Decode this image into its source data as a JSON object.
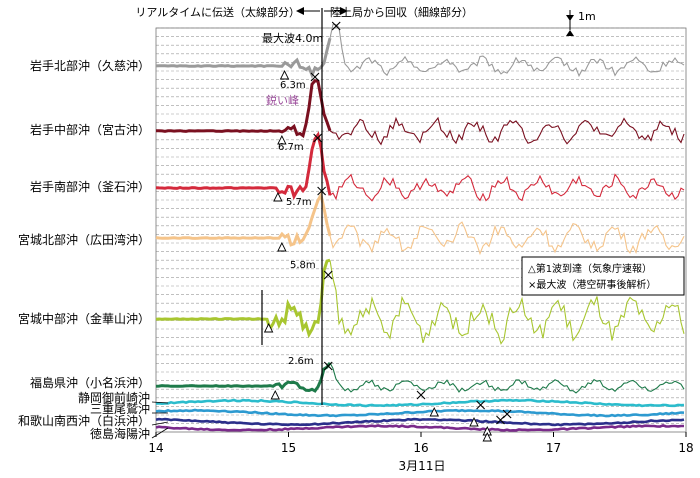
{
  "chart_data": {
    "type": "line",
    "xlabel": "3月11日",
    "xlim": [
      14,
      18
    ],
    "x_ticks": [
      "14",
      "15",
      "16",
      "17",
      "18"
    ],
    "scale_bar_label": "1m",
    "top_annotations": {
      "realtime": "リアルタイムに伝送（太線部分）",
      "recovered": "陸上局から回収（細線部分）"
    },
    "peak_labels": {
      "max_wave": "最大波4.0m",
      "sharp_peak": "鋭い峰",
      "iwate_central": "6.3m",
      "iwate_south": "6.7m",
      "miyagi_north": "5.7m",
      "miyagi_central": "5.8m",
      "fukushima": "2.6m"
    },
    "legend": {
      "first_wave": "△第1波到達（気象庁速報）",
      "max_wave": "×最大波（港空研事後解析）"
    },
    "series": [
      {
        "name": "岩手北部沖（久慈沖）",
        "color": "#9a9a9a",
        "arrival_x": 14.97,
        "peak_x": 15.36,
        "peak_m": 4.0
      },
      {
        "name": "岩手中部沖（宮古沖）",
        "color": "#7a1020",
        "arrival_x": 14.95,
        "peak_x": 15.2,
        "peak_m": 6.3
      },
      {
        "name": "岩手南部沖（釜石沖）",
        "color": "#d42a3c",
        "arrival_x": 14.92,
        "peak_x": 15.22,
        "peak_m": 6.7
      },
      {
        "name": "宮城北部沖（広田湾沖）",
        "color": "#f5c48a",
        "arrival_x": 14.95,
        "peak_x": 15.25,
        "peak_m": 5.7
      },
      {
        "name": "宮城中部沖（金華山沖）",
        "color": "#a8c630",
        "arrival_x": 14.85,
        "peak_x": 15.3,
        "peak_m": 5.8
      },
      {
        "name": "福島県沖（小名浜沖）",
        "color": "#1e7a4a",
        "arrival_x": 14.9,
        "peak_x": 15.3,
        "peak_m": 2.6
      },
      {
        "name": "静岡御前崎沖",
        "color": "#2bbccc",
        "arrival_x": 16.1,
        "peak_x": 16.0
      },
      {
        "name": "三重尾鷲沖",
        "color": "#2d9ad0",
        "arrival_x": 16.4,
        "peak_x": 16.45
      },
      {
        "name": "和歌山南西沖（白浜沖）",
        "color": "#2b2f8a",
        "arrival_x": 16.5,
        "peak_x": 16.65
      },
      {
        "name": "徳島海陽沖",
        "color": "#7a2a8a",
        "arrival_x": 16.5,
        "peak_x": 16.6
      }
    ]
  }
}
